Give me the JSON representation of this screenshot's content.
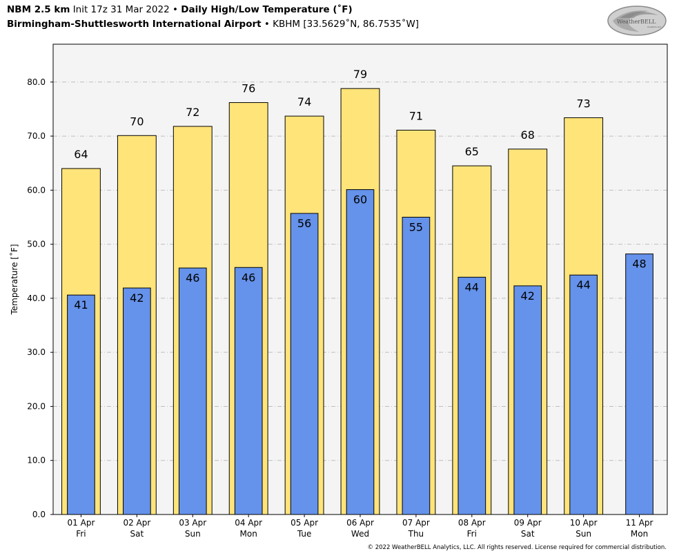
{
  "header": {
    "model": "NBM 2.5 km",
    "init": "Init 17z 31 Mar 2022",
    "bullet": "•",
    "title": "Daily High/Low Temperature (˚F)",
    "station": "Birmingham-Shuttlesworth International Airport",
    "station_code": "KBHM [33.5629˚N, 86.7535˚W]"
  },
  "logo": {
    "text": "WeatherBELL",
    "subtext": "Analytics LLC"
  },
  "copyright": "© 2022 WeatherBELL Analytics, LLC. All rights reserved. License required for commercial distribution.",
  "colors": {
    "high": "#ffe47a",
    "low": "#6592ea",
    "plot_bg": "#f4f4f4",
    "grid": "#bdbdbd"
  },
  "chart_data": {
    "type": "bar",
    "ylabel": "Temperature [˚F]",
    "ylim": [
      0,
      87
    ],
    "yticks": [
      0,
      10,
      20,
      30,
      40,
      50,
      60,
      70,
      80
    ],
    "ytick_labels": [
      "0.0",
      "10.0",
      "20.0",
      "30.0",
      "40.0",
      "50.0",
      "60.0",
      "70.0",
      "80.0"
    ],
    "grid": true,
    "categories": [
      "01 Apr\nFri",
      "02 Apr\nSat",
      "03 Apr\nSun",
      "04 Apr\nMon",
      "05 Apr\nTue",
      "06 Apr\nWed",
      "07 Apr\nThu",
      "08 Apr\nFri",
      "09 Apr\nSat",
      "10 Apr\nSun",
      "11 Apr\nMon"
    ],
    "series": [
      {
        "values": [
          64.0,
          70.1,
          71.8,
          76.2,
          73.7,
          78.8,
          71.1,
          64.5,
          67.6,
          73.4,
          null
        ],
        "labels": [
          "64",
          "70",
          "72",
          "76",
          "74",
          "79",
          "71",
          "65",
          "68",
          "73",
          ""
        ]
      },
      {
        "values": [
          40.6,
          41.9,
          45.6,
          45.7,
          55.7,
          60.1,
          55.0,
          43.9,
          42.3,
          44.3,
          48.2
        ],
        "labels": [
          "41",
          "42",
          "46",
          "46",
          "56",
          "60",
          "55",
          "44",
          "42",
          "44",
          "48"
        ]
      }
    ]
  }
}
